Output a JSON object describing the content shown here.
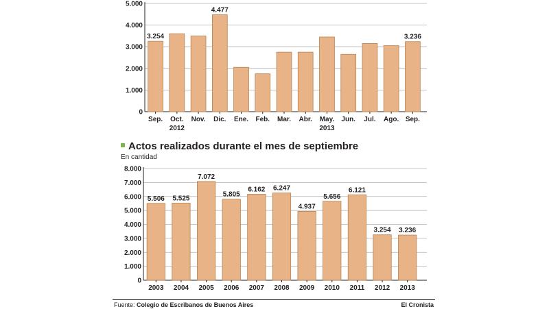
{
  "chart_data": [
    {
      "type": "bar",
      "categories": [
        "Sep.",
        "Oct.",
        "Nov.",
        "Dic.",
        "Ene.",
        "Feb.",
        "Mar.",
        "Abr.",
        "May.",
        "Jun.",
        "Jul.",
        "Ago.",
        "Sep."
      ],
      "category_sublabels": [
        "",
        "2012",
        "",
        "",
        "",
        "",
        "",
        "",
        "2013",
        "",
        "",
        "",
        ""
      ],
      "values": [
        3254,
        3600,
        3500,
        4477,
        2050,
        1750,
        2750,
        2750,
        3450,
        2650,
        3150,
        3050,
        3236
      ],
      "data_labels": [
        "3.254",
        "",
        "",
        "4.477",
        "",
        "",
        "",
        "",
        "",
        "",
        "",
        "",
        "3.236"
      ],
      "yticks": [
        "0",
        "1.000",
        "2.000",
        "3.000",
        "4.000",
        "5.000"
      ],
      "ylim": [
        0,
        5000
      ],
      "grid": true,
      "bar_color": "#e8b387",
      "bar_stroke": "#b78150"
    },
    {
      "type": "bar",
      "title": "Actos realizados durante el mes de septiembre",
      "subtitle": "En cantidad",
      "categories": [
        "2003",
        "2004",
        "2005",
        "2006",
        "2007",
        "2008",
        "2009",
        "2010",
        "2011",
        "2012",
        "2013"
      ],
      "values": [
        5506,
        5525,
        7072,
        5805,
        6162,
        6247,
        4937,
        5656,
        6121,
        3254,
        3236
      ],
      "data_labels": [
        "5.506",
        "5.525",
        "7.072",
        "5.805",
        "6.162",
        "6.247",
        "4.937",
        "5.656",
        "6.121",
        "3.254",
        "3.236"
      ],
      "yticks": [
        "0",
        "1.000",
        "2.000",
        "3.000",
        "4.000",
        "5.000",
        "6.000",
        "7.000",
        "8.000"
      ],
      "ylim": [
        0,
        8000
      ],
      "grid": true,
      "bar_color": "#e8b387",
      "bar_stroke": "#b78150"
    }
  ],
  "legend_marker_color": "#7ab648",
  "footer": {
    "source_label": "Fuente:",
    "source_value": "Colegio de Escribanos de Buenos Aires",
    "brand": "El Cronista"
  }
}
